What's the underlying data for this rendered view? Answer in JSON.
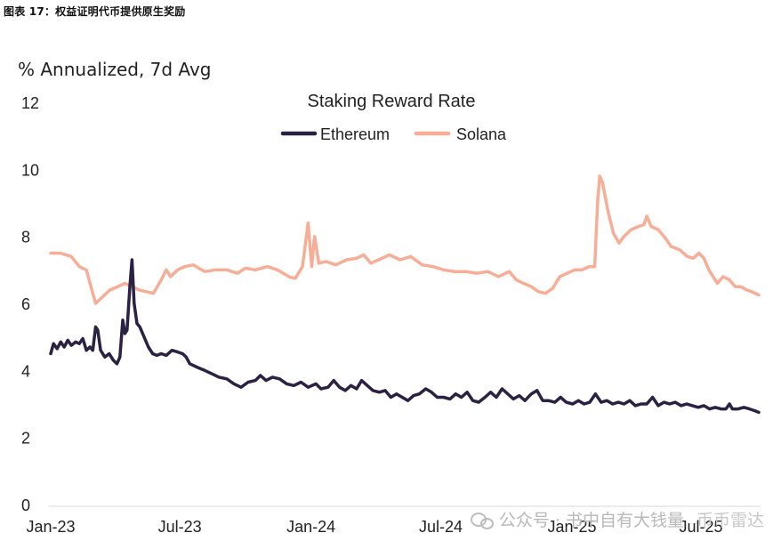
{
  "header": {
    "caption": "图表 17：权益证明代币提供原生奖励"
  },
  "watermark": {
    "icon": "wechat-icon",
    "text": "公众号 · 书中自有大钱量",
    "text2": "币币雷达"
  },
  "chart_data": {
    "type": "line",
    "title": "Staking Reward Rate",
    "ylabel": "% Annualized, 7d Avg",
    "xlabel": "",
    "ylim": [
      0,
      12
    ],
    "yticks": [
      0,
      2,
      4,
      6,
      8,
      10,
      12
    ],
    "xticks": [
      "Jan-23",
      "Jul-23",
      "Jan-24",
      "Jul-24",
      "Jan-25",
      "Jul-25"
    ],
    "xlim": [
      "2023-01-01",
      "2025-09-20"
    ],
    "grid": false,
    "legend": "top-center",
    "series": [
      {
        "name": "Ethereum",
        "color": "#2b2243",
        "points": [
          [
            "2023-01-01",
            4.5
          ],
          [
            "2023-01-05",
            4.8
          ],
          [
            "2023-01-10",
            4.65
          ],
          [
            "2023-01-15",
            4.85
          ],
          [
            "2023-01-20",
            4.7
          ],
          [
            "2023-01-25",
            4.9
          ],
          [
            "2023-01-30",
            4.75
          ],
          [
            "2023-02-05",
            4.85
          ],
          [
            "2023-02-10",
            4.8
          ],
          [
            "2023-02-15",
            4.95
          ],
          [
            "2023-02-20",
            4.6
          ],
          [
            "2023-02-25",
            4.7
          ],
          [
            "2023-03-01",
            4.6
          ],
          [
            "2023-03-05",
            5.3
          ],
          [
            "2023-03-08",
            5.2
          ],
          [
            "2023-03-12",
            4.6
          ],
          [
            "2023-03-18",
            4.4
          ],
          [
            "2023-03-24",
            4.5
          ],
          [
            "2023-03-30",
            4.3
          ],
          [
            "2023-04-04",
            4.2
          ],
          [
            "2023-04-08",
            4.4
          ],
          [
            "2023-04-12",
            5.5
          ],
          [
            "2023-04-15",
            5.1
          ],
          [
            "2023-04-18",
            5.2
          ],
          [
            "2023-04-22",
            6.5
          ],
          [
            "2023-04-25",
            7.3
          ],
          [
            "2023-04-28",
            6.0
          ],
          [
            "2023-05-02",
            5.4
          ],
          [
            "2023-05-06",
            5.3
          ],
          [
            "2023-05-12",
            5.0
          ],
          [
            "2023-05-18",
            4.7
          ],
          [
            "2023-05-24",
            4.5
          ],
          [
            "2023-05-30",
            4.45
          ],
          [
            "2023-06-05",
            4.5
          ],
          [
            "2023-06-12",
            4.45
          ],
          [
            "2023-06-20",
            4.6
          ],
          [
            "2023-06-28",
            4.55
          ],
          [
            "2023-07-05",
            4.5
          ],
          [
            "2023-07-10",
            4.4
          ],
          [
            "2023-07-15",
            4.2
          ],
          [
            "2023-07-25",
            4.1
          ],
          [
            "2023-08-05",
            4.0
          ],
          [
            "2023-08-15",
            3.9
          ],
          [
            "2023-08-25",
            3.8
          ],
          [
            "2023-09-05",
            3.75
          ],
          [
            "2023-09-15",
            3.6
          ],
          [
            "2023-09-25",
            3.5
          ],
          [
            "2023-10-05",
            3.65
          ],
          [
            "2023-10-15",
            3.7
          ],
          [
            "2023-10-22",
            3.85
          ],
          [
            "2023-10-30",
            3.7
          ],
          [
            "2023-11-08",
            3.8
          ],
          [
            "2023-11-18",
            3.75
          ],
          [
            "2023-11-28",
            3.6
          ],
          [
            "2023-12-08",
            3.55
          ],
          [
            "2023-12-18",
            3.65
          ],
          [
            "2023-12-28",
            3.5
          ],
          [
            "2024-01-08",
            3.6
          ],
          [
            "2024-01-15",
            3.45
          ],
          [
            "2024-01-25",
            3.5
          ],
          [
            "2024-02-02",
            3.7
          ],
          [
            "2024-02-10",
            3.5
          ],
          [
            "2024-02-18",
            3.4
          ],
          [
            "2024-02-26",
            3.55
          ],
          [
            "2024-03-05",
            3.45
          ],
          [
            "2024-03-12",
            3.7
          ],
          [
            "2024-03-20",
            3.55
          ],
          [
            "2024-03-28",
            3.4
          ],
          [
            "2024-04-06",
            3.35
          ],
          [
            "2024-04-14",
            3.4
          ],
          [
            "2024-04-22",
            3.2
          ],
          [
            "2024-04-30",
            3.3
          ],
          [
            "2024-05-08",
            3.2
          ],
          [
            "2024-05-16",
            3.1
          ],
          [
            "2024-05-24",
            3.25
          ],
          [
            "2024-06-01",
            3.3
          ],
          [
            "2024-06-10",
            3.45
          ],
          [
            "2024-06-18",
            3.35
          ],
          [
            "2024-06-26",
            3.2
          ],
          [
            "2024-07-05",
            3.2
          ],
          [
            "2024-07-14",
            3.15
          ],
          [
            "2024-07-22",
            3.3
          ],
          [
            "2024-07-30",
            3.2
          ],
          [
            "2024-08-07",
            3.35
          ],
          [
            "2024-08-15",
            3.1
          ],
          [
            "2024-08-23",
            3.05
          ],
          [
            "2024-09-01",
            3.2
          ],
          [
            "2024-09-09",
            3.35
          ],
          [
            "2024-09-17",
            3.2
          ],
          [
            "2024-09-25",
            3.45
          ],
          [
            "2024-10-03",
            3.3
          ],
          [
            "2024-10-11",
            3.15
          ],
          [
            "2024-10-19",
            3.25
          ],
          [
            "2024-10-27",
            3.1
          ],
          [
            "2024-11-05",
            3.3
          ],
          [
            "2024-11-13",
            3.4
          ],
          [
            "2024-11-21",
            3.1
          ],
          [
            "2024-11-29",
            3.1
          ],
          [
            "2024-12-08",
            3.05
          ],
          [
            "2024-12-16",
            3.2
          ],
          [
            "2024-12-24",
            3.05
          ],
          [
            "2025-01-02",
            3.0
          ],
          [
            "2025-01-10",
            3.1
          ],
          [
            "2025-01-18",
            3.0
          ],
          [
            "2025-01-26",
            3.05
          ],
          [
            "2025-02-03",
            3.3
          ],
          [
            "2025-02-11",
            3.05
          ],
          [
            "2025-02-19",
            3.1
          ],
          [
            "2025-02-27",
            3.0
          ],
          [
            "2025-03-07",
            3.05
          ],
          [
            "2025-03-15",
            3.0
          ],
          [
            "2025-03-23",
            3.1
          ],
          [
            "2025-03-31",
            2.95
          ],
          [
            "2025-04-08",
            3.0
          ],
          [
            "2025-04-16",
            3.0
          ],
          [
            "2025-04-24",
            3.2
          ],
          [
            "2025-05-02",
            2.95
          ],
          [
            "2025-05-10",
            3.05
          ],
          [
            "2025-05-18",
            3.0
          ],
          [
            "2025-05-26",
            3.05
          ],
          [
            "2025-06-03",
            2.95
          ],
          [
            "2025-06-11",
            3.0
          ],
          [
            "2025-06-19",
            2.95
          ],
          [
            "2025-06-27",
            2.9
          ],
          [
            "2025-07-05",
            2.95
          ],
          [
            "2025-07-13",
            2.85
          ],
          [
            "2025-07-21",
            2.9
          ],
          [
            "2025-07-29",
            2.85
          ],
          [
            "2025-08-05",
            2.85
          ],
          [
            "2025-08-10",
            3.0
          ],
          [
            "2025-08-14",
            2.85
          ],
          [
            "2025-08-22",
            2.85
          ],
          [
            "2025-08-30",
            2.9
          ],
          [
            "2025-09-07",
            2.85
          ],
          [
            "2025-09-14",
            2.8
          ],
          [
            "2025-09-20",
            2.75
          ]
        ]
      },
      {
        "name": "Solana",
        "color": "#f7ad96",
        "points": [
          [
            "2023-01-01",
            7.5
          ],
          [
            "2023-01-15",
            7.5
          ],
          [
            "2023-01-30",
            7.4
          ],
          [
            "2023-02-10",
            7.1
          ],
          [
            "2023-02-20",
            7.0
          ],
          [
            "2023-03-01",
            6.3
          ],
          [
            "2023-03-05",
            6.0
          ],
          [
            "2023-03-15",
            6.2
          ],
          [
            "2023-03-25",
            6.4
          ],
          [
            "2023-04-05",
            6.5
          ],
          [
            "2023-04-15",
            6.6
          ],
          [
            "2023-04-25",
            6.5
          ],
          [
            "2023-05-05",
            6.4
          ],
          [
            "2023-05-15",
            6.35
          ],
          [
            "2023-05-25",
            6.3
          ],
          [
            "2023-06-05",
            6.7
          ],
          [
            "2023-06-12",
            7.0
          ],
          [
            "2023-06-18",
            6.8
          ],
          [
            "2023-06-28",
            7.0
          ],
          [
            "2023-07-08",
            7.1
          ],
          [
            "2023-07-20",
            7.15
          ],
          [
            "2023-08-05",
            6.95
          ],
          [
            "2023-08-20",
            7.0
          ],
          [
            "2023-09-05",
            7.0
          ],
          [
            "2023-09-20",
            6.9
          ],
          [
            "2023-10-01",
            7.05
          ],
          [
            "2023-10-15",
            7.0
          ],
          [
            "2023-11-01",
            7.1
          ],
          [
            "2023-11-15",
            7.0
          ],
          [
            "2023-12-01",
            6.8
          ],
          [
            "2023-12-10",
            6.75
          ],
          [
            "2023-12-20",
            7.1
          ],
          [
            "2023-12-28",
            8.4
          ],
          [
            "2024-01-02",
            7.1
          ],
          [
            "2024-01-06",
            8.0
          ],
          [
            "2024-01-12",
            7.2
          ],
          [
            "2024-01-22",
            7.25
          ],
          [
            "2024-02-05",
            7.15
          ],
          [
            "2024-02-20",
            7.3
          ],
          [
            "2024-03-05",
            7.35
          ],
          [
            "2024-03-15",
            7.45
          ],
          [
            "2024-03-25",
            7.2
          ],
          [
            "2024-04-05",
            7.3
          ],
          [
            "2024-04-20",
            7.45
          ],
          [
            "2024-05-05",
            7.3
          ],
          [
            "2024-05-20",
            7.4
          ],
          [
            "2024-06-05",
            7.15
          ],
          [
            "2024-06-20",
            7.1
          ],
          [
            "2024-07-05",
            7.0
          ],
          [
            "2024-07-20",
            6.95
          ],
          [
            "2024-08-05",
            6.95
          ],
          [
            "2024-08-20",
            6.9
          ],
          [
            "2024-09-05",
            6.95
          ],
          [
            "2024-09-20",
            6.8
          ],
          [
            "2024-10-05",
            6.95
          ],
          [
            "2024-10-15",
            6.7
          ],
          [
            "2024-10-25",
            6.6
          ],
          [
            "2024-11-05",
            6.5
          ],
          [
            "2024-11-15",
            6.35
          ],
          [
            "2024-11-25",
            6.3
          ],
          [
            "2024-12-05",
            6.45
          ],
          [
            "2024-12-15",
            6.8
          ],
          [
            "2024-12-25",
            6.9
          ],
          [
            "2025-01-05",
            7.0
          ],
          [
            "2025-01-15",
            7.0
          ],
          [
            "2025-01-25",
            7.1
          ],
          [
            "2025-02-02",
            7.1
          ],
          [
            "2025-02-06",
            9.0
          ],
          [
            "2025-02-09",
            9.8
          ],
          [
            "2025-02-13",
            9.6
          ],
          [
            "2025-02-20",
            8.8
          ],
          [
            "2025-02-28",
            8.1
          ],
          [
            "2025-03-08",
            7.8
          ],
          [
            "2025-03-15",
            8.0
          ],
          [
            "2025-03-25",
            8.2
          ],
          [
            "2025-04-05",
            8.3
          ],
          [
            "2025-04-12",
            8.35
          ],
          [
            "2025-04-16",
            8.6
          ],
          [
            "2025-04-22",
            8.3
          ],
          [
            "2025-05-02",
            8.2
          ],
          [
            "2025-05-12",
            7.95
          ],
          [
            "2025-05-20",
            7.7
          ],
          [
            "2025-06-01",
            7.6
          ],
          [
            "2025-06-12",
            7.4
          ],
          [
            "2025-06-20",
            7.35
          ],
          [
            "2025-06-28",
            7.5
          ],
          [
            "2025-07-05",
            7.35
          ],
          [
            "2025-07-12",
            7.0
          ],
          [
            "2025-07-18",
            6.8
          ],
          [
            "2025-07-24",
            6.6
          ],
          [
            "2025-08-01",
            6.8
          ],
          [
            "2025-08-10",
            6.7
          ],
          [
            "2025-08-18",
            6.5
          ],
          [
            "2025-08-26",
            6.5
          ],
          [
            "2025-09-03",
            6.4
          ],
          [
            "2025-09-10",
            6.35
          ],
          [
            "2025-09-20",
            6.25
          ]
        ]
      }
    ]
  }
}
